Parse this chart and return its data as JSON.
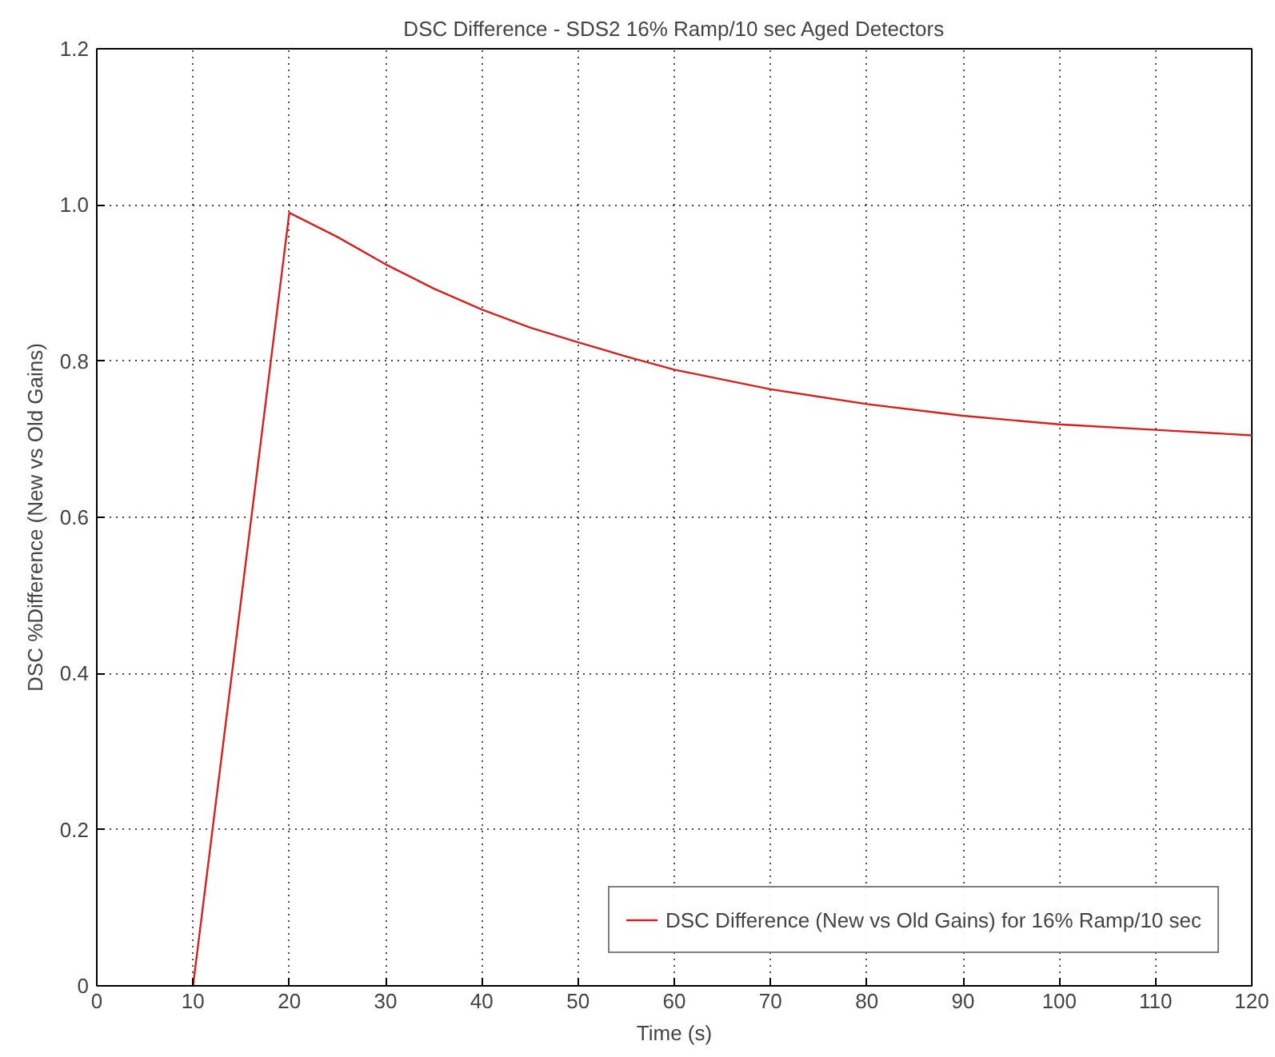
{
  "chart_data": {
    "type": "line",
    "title": "DSC Difference - SDS2 16% Ramp/10 sec Aged Detectors",
    "xlabel": "Time (s)",
    "ylabel": "DSC %Difference (New vs Old Gains)",
    "x": [
      10,
      20,
      25,
      30,
      35,
      40,
      45,
      50,
      55,
      60,
      70,
      80,
      90,
      100,
      110,
      120
    ],
    "series": [
      {
        "name": "DSC Difference (New vs Old Gains) for 16% Ramp/10 sec",
        "color": "#d62020",
        "values": [
          0,
          0.99,
          0.959,
          0.924,
          0.893,
          0.866,
          0.843,
          0.824,
          0.806,
          0.789,
          0.764,
          0.745,
          0.73,
          0.719,
          0.712,
          0.705
        ]
      }
    ],
    "xlim": [
      0,
      120
    ],
    "xticks": [
      0,
      10,
      20,
      30,
      40,
      50,
      60,
      70,
      80,
      90,
      100,
      110,
      120
    ],
    "ylim": [
      0,
      1.2
    ],
    "yticks": [
      0,
      {
        "value": 0.2,
        "label": "0.2"
      },
      {
        "value": 0.4,
        "label": "0.4"
      },
      {
        "value": 0.6,
        "label": "0.6"
      },
      {
        "value": 0.8,
        "label": "0.8"
      },
      {
        "value": 1.0,
        "label": "1.0"
      },
      {
        "value": 1.2,
        "label": "1.2"
      }
    ],
    "grid": true,
    "legend": "bottom right",
    "line_style": "solid"
  }
}
